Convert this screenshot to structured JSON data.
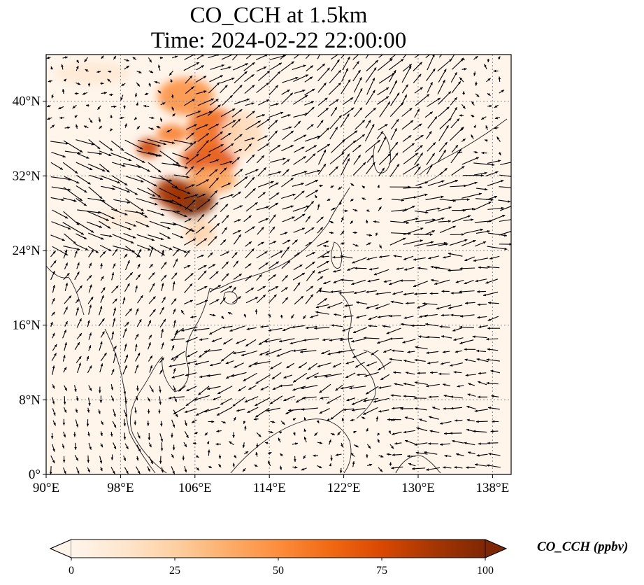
{
  "title": {
    "line1": "CO_CCH at 1.5km",
    "line2": "Time: 2024-02-22 22:00:00"
  },
  "map": {
    "extent": {
      "lon": [
        90,
        140
      ],
      "lat": [
        0,
        45
      ]
    },
    "x_ticks": [
      {
        "value": 90,
        "label": "90°E"
      },
      {
        "value": 98,
        "label": "98°E"
      },
      {
        "value": 106,
        "label": "106°E"
      },
      {
        "value": 114,
        "label": "114°E"
      },
      {
        "value": 122,
        "label": "122°E"
      },
      {
        "value": 130,
        "label": "130°E"
      },
      {
        "value": 138,
        "label": "138°E"
      }
    ],
    "y_ticks": [
      {
        "value": 0,
        "label": "0°"
      },
      {
        "value": 8,
        "label": "8°N"
      },
      {
        "value": 16,
        "label": "16°N"
      },
      {
        "value": 24,
        "label": "24°N"
      },
      {
        "value": 32,
        "label": "32°N"
      },
      {
        "value": 40,
        "label": "40°N"
      }
    ],
    "gridlines": "dotted",
    "background_color": "#fff5eb",
    "plumes": [
      {
        "lon": 105.5,
        "lat": 29.5,
        "rlon": 2.6,
        "rlat": 2.0,
        "value": 100
      },
      {
        "lon": 103.5,
        "lat": 30.2,
        "rlon": 1.8,
        "rlat": 1.6,
        "value": 88
      },
      {
        "lon": 107.5,
        "lat": 33.8,
        "rlon": 3.0,
        "rlat": 1.6,
        "value": 70
      },
      {
        "lon": 108.0,
        "lat": 37.0,
        "rlon": 2.8,
        "rlat": 2.2,
        "value": 62
      },
      {
        "lon": 105.0,
        "lat": 40.5,
        "rlon": 3.0,
        "rlat": 2.0,
        "value": 48
      },
      {
        "lon": 103.5,
        "lat": 36.5,
        "rlon": 1.6,
        "rlat": 1.0,
        "value": 55
      },
      {
        "lon": 101.0,
        "lat": 35.0,
        "rlon": 1.2,
        "rlat": 1.0,
        "value": 78
      },
      {
        "lon": 107.8,
        "lat": 31.6,
        "rlon": 2.6,
        "rlat": 1.4,
        "value": 42
      },
      {
        "lon": 106.5,
        "lat": 26.0,
        "rlon": 1.6,
        "rlat": 1.4,
        "value": 22
      },
      {
        "lon": 111.0,
        "lat": 36.5,
        "rlon": 2.2,
        "rlat": 2.4,
        "value": 18
      },
      {
        "lon": 95.0,
        "lat": 43.0,
        "rlon": 4.0,
        "rlat": 1.2,
        "value": 10
      },
      {
        "lon": 98.5,
        "lat": 27.5,
        "rlon": 3.0,
        "rlat": 1.0,
        "value": 8
      }
    ],
    "wind_regions": [
      {
        "lon": [
          90,
          104
        ],
        "lat": [
          24,
          37
        ],
        "u": 1.0,
        "v": -0.45,
        "speed": 1.4
      },
      {
        "lon": [
          104,
          118
        ],
        "lat": [
          28,
          45
        ],
        "u": 0.9,
        "v": 0.55,
        "speed": 1.0
      },
      {
        "lon": [
          118,
          134
        ],
        "lat": [
          32,
          45
        ],
        "u": 0.7,
        "v": 0.8,
        "speed": 1.1
      },
      {
        "lon": [
          126,
          140
        ],
        "lat": [
          24,
          34
        ],
        "u": 1.0,
        "v": 0.15,
        "speed": 1.2
      },
      {
        "lon": [
          104,
          120
        ],
        "lat": [
          18,
          28
        ],
        "u": 0.8,
        "v": 0.6,
        "speed": 0.8
      },
      {
        "lon": [
          118,
          140
        ],
        "lat": [
          14,
          24
        ],
        "u": -1.0,
        "v": -0.1,
        "speed": 0.9
      },
      {
        "lon": [
          104,
          128
        ],
        "lat": [
          6,
          16
        ],
        "u": -1.0,
        "v": -0.4,
        "speed": 1.0
      },
      {
        "lon": [
          90,
          104
        ],
        "lat": [
          10,
          24
        ],
        "u": 0.3,
        "v": 0.6,
        "speed": 0.6
      },
      {
        "lon": [
          90,
          106
        ],
        "lat": [
          0,
          10
        ],
        "u": 0.2,
        "v": -0.8,
        "speed": 0.5
      },
      {
        "lon": [
          128,
          140
        ],
        "lat": [
          0,
          14
        ],
        "u": -1.0,
        "v": 0.05,
        "speed": 0.8
      }
    ]
  },
  "colorbar": {
    "label": "CO_CCH (ppbv)",
    "min": 0,
    "max": 100,
    "extend": "both",
    "ticks": [
      {
        "value": 0,
        "label": "0"
      },
      {
        "value": 25,
        "label": "25"
      },
      {
        "value": 50,
        "label": "50"
      },
      {
        "value": 75,
        "label": "75"
      },
      {
        "value": 100,
        "label": "100"
      }
    ],
    "colors": [
      "#fff5eb",
      "#fee6ce",
      "#fdd0a2",
      "#fdae6b",
      "#fd8d3c",
      "#f16913",
      "#d94801",
      "#a63603",
      "#7f2704"
    ],
    "under_color": "#fff5eb",
    "over_color": "#7f2704"
  },
  "icons": {
    "wind_arrow": "vector-arrow-icon",
    "coastline": "coastline-icon"
  }
}
